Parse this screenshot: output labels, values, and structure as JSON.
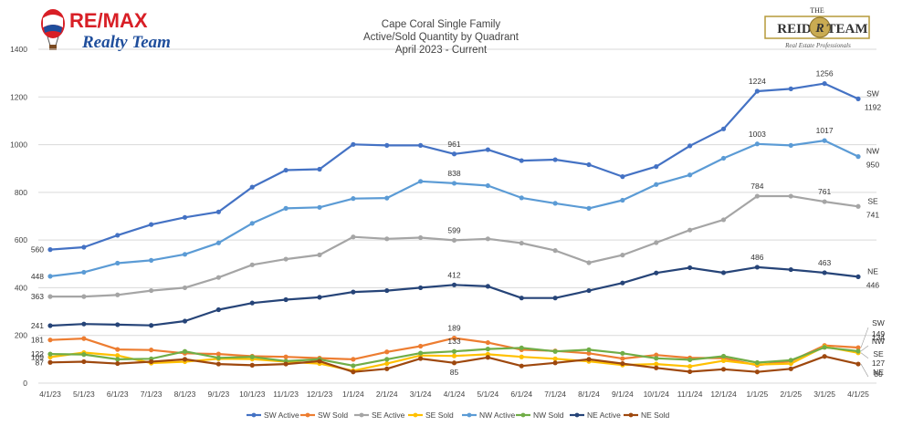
{
  "logos": {
    "left": {
      "brand": "RE/MAX",
      "sub": "Realty Team",
      "icon": "hot-air-balloon-icon"
    },
    "right": {
      "the": "THE",
      "name": "REID",
      "team": "TEAM",
      "tagline": "Real Estate Professionals",
      "icon": "r-monogram-icon"
    }
  },
  "chart_data": {
    "type": "line",
    "title": [
      "Cape Coral Single Family",
      "Active/Sold Quantity by Quadrant",
      "April 2023 - Current"
    ],
    "xlabel": "",
    "ylabel": "",
    "ylim": [
      0,
      1400
    ],
    "yticks": [
      0,
      200,
      400,
      600,
      800,
      1000,
      1200,
      1400
    ],
    "grid": true,
    "legend_position": "bottom",
    "categories": [
      "4/1/23",
      "5/1/23",
      "6/1/23",
      "7/1/23",
      "8/1/23",
      "9/1/23",
      "10/1/23",
      "11/1/23",
      "12/1/23",
      "1/1/24",
      "2/1/24",
      "3/1/24",
      "4/1/24",
      "5/1/24",
      "6/1/24",
      "7/1/24",
      "8/1/24",
      "9/1/24",
      "10/1/24",
      "11/1/24",
      "12/1/24",
      "1/1/25",
      "2/1/25",
      "3/1/25",
      "4/1/25"
    ],
    "series": [
      {
        "name": "SW Active",
        "color": "#4472C4",
        "end_label": "SW",
        "values": [
          560,
          570,
          620,
          665,
          695,
          718,
          822,
          893,
          897,
          1001,
          997,
          997,
          961,
          979,
          933,
          937,
          916,
          866,
          908,
          995,
          1066,
          1224,
          1234,
          1256,
          1192
        ],
        "labels": [
          {
            "i": 0,
            "text": "560",
            "pos": "left"
          },
          {
            "i": 12,
            "text": "961",
            "pos": "above"
          },
          {
            "i": 21,
            "text": "1224",
            "pos": "above"
          },
          {
            "i": 23,
            "text": "1256",
            "pos": "above"
          },
          {
            "i": 24,
            "text": "1192",
            "pos": "below-right"
          }
        ]
      },
      {
        "name": "SW Sold",
        "color": "#ED7D31",
        "end_label": "SW",
        "values": [
          181,
          187,
          141,
          139,
          125,
          122,
          113,
          110,
          105,
          100,
          131,
          155,
          189,
          170,
          140,
          135,
          125,
          103,
          118,
          106,
          105,
          75,
          92,
          158,
          149
        ],
        "labels": [
          {
            "i": 0,
            "text": "181",
            "pos": "left"
          },
          {
            "i": 12,
            "text": "189",
            "pos": "above"
          },
          {
            "i": 24,
            "text": "149",
            "pos": "far-right"
          }
        ]
      },
      {
        "name": "SE Active",
        "color": "#A5A5A5",
        "end_label": "SE",
        "values": [
          363,
          363,
          370,
          388,
          400,
          443,
          496,
          520,
          538,
          613,
          605,
          610,
          599,
          605,
          587,
          556,
          505,
          537,
          589,
          642,
          685,
          784,
          784,
          761,
          741
        ],
        "labels": [
          {
            "i": 0,
            "text": "363",
            "pos": "left"
          },
          {
            "i": 12,
            "text": "599",
            "pos": "above"
          },
          {
            "i": 21,
            "text": "784",
            "pos": "above"
          },
          {
            "i": 23,
            "text": "761",
            "pos": "above"
          },
          {
            "i": 24,
            "text": "741",
            "pos": "below-right"
          }
        ]
      },
      {
        "name": "SE Sold",
        "color": "#FFC000",
        "end_label": "SE",
        "values": [
          109,
          128,
          116,
          84,
          90,
          102,
          101,
          90,
          82,
          52,
          82,
          116,
          114,
          121,
          110,
          102,
          91,
          76,
          80,
          70,
          94,
          78,
          82,
          153,
          127
        ],
        "labels": [
          {
            "i": 0,
            "text": "109",
            "pos": "left"
          },
          {
            "i": 24,
            "text": "127",
            "pos": "far-right-low"
          }
        ]
      },
      {
        "name": "NW Active",
        "color": "#5B9BD5",
        "end_label": "NW",
        "values": [
          448,
          465,
          503,
          515,
          540,
          588,
          670,
          733,
          737,
          774,
          776,
          846,
          838,
          828,
          777,
          754,
          733,
          767,
          833,
          873,
          943,
          1003,
          997,
          1017,
          950
        ],
        "labels": [
          {
            "i": 0,
            "text": "448",
            "pos": "left"
          },
          {
            "i": 12,
            "text": "838",
            "pos": "above"
          },
          {
            "i": 21,
            "text": "1003",
            "pos": "above"
          },
          {
            "i": 23,
            "text": "1017",
            "pos": "above"
          },
          {
            "i": 24,
            "text": "950",
            "pos": "below-right"
          }
        ]
      },
      {
        "name": "NW Sold",
        "color": "#70AD47",
        "end_label": "NW",
        "values": [
          122,
          120,
          100,
          102,
          133,
          106,
          110,
          92,
          100,
          73,
          100,
          126,
          133,
          143,
          148,
          133,
          140,
          125,
          104,
          98,
          113,
          86,
          96,
          150,
          134
        ],
        "labels": [
          {
            "i": 0,
            "text": "122",
            "pos": "left"
          },
          {
            "i": 12,
            "text": "133",
            "pos": "above"
          },
          {
            "i": 24,
            "text": "134",
            "pos": "far-right"
          }
        ]
      },
      {
        "name": "NE Active",
        "color": "#264478",
        "end_label": "NE",
        "values": [
          241,
          248,
          245,
          242,
          260,
          308,
          336,
          350,
          360,
          382,
          388,
          400,
          412,
          406,
          357,
          357,
          388,
          420,
          462,
          484,
          463,
          486,
          476,
          463,
          446
        ],
        "labels": [
          {
            "i": 0,
            "text": "241",
            "pos": "left"
          },
          {
            "i": 12,
            "text": "412",
            "pos": "above"
          },
          {
            "i": 21,
            "text": "486",
            "pos": "above"
          },
          {
            "i": 23,
            "text": "463",
            "pos": "above"
          },
          {
            "i": 24,
            "text": "446",
            "pos": "below-right"
          }
        ]
      },
      {
        "name": "NE Sold",
        "color": "#9E480E",
        "end_label": "NE",
        "values": [
          87,
          90,
          82,
          90,
          100,
          80,
          75,
          80,
          92,
          47,
          60,
          103,
          85,
          108,
          72,
          85,
          100,
          82,
          64,
          48,
          58,
          47,
          60,
          112,
          80
        ],
        "labels": [
          {
            "i": 0,
            "text": "87",
            "pos": "left"
          },
          {
            "i": 12,
            "text": "85",
            "pos": "below"
          },
          {
            "i": 24,
            "text": "80",
            "pos": "far-right-low"
          }
        ]
      }
    ]
  }
}
